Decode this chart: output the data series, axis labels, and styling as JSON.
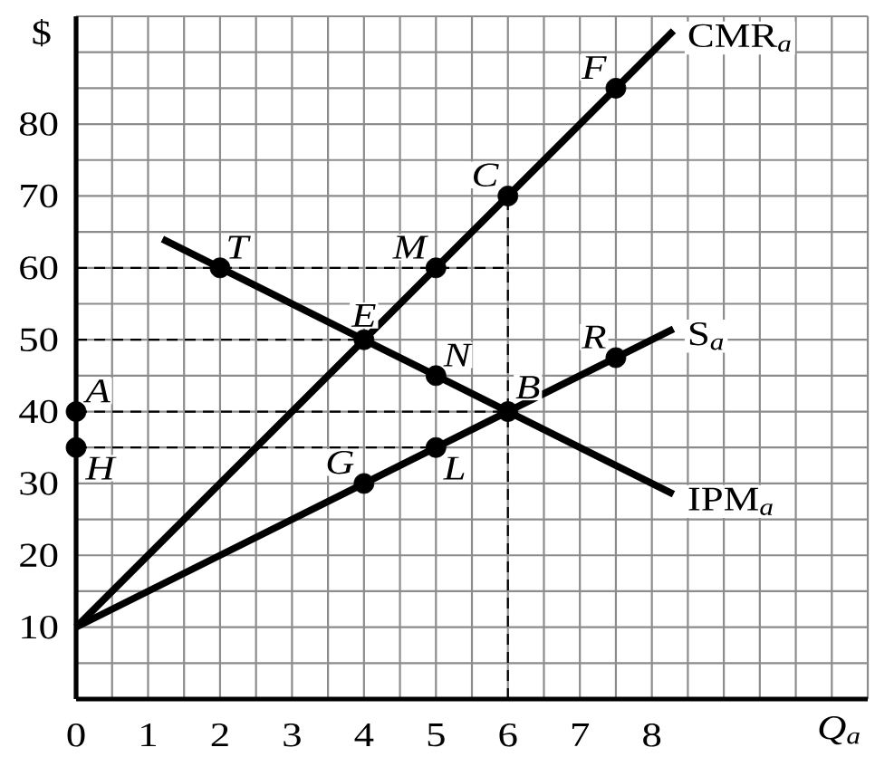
{
  "chart_data": {
    "type": "line",
    "xlabel": "Q$_{a}$",
    "ylabel": "$",
    "xlim": [
      0,
      11
    ],
    "ylim": [
      0,
      95
    ],
    "xticks": [
      0,
      {
        "value": 0.5,
        "label": null
      },
      1,
      {
        "value": 1.5,
        "label": null
      },
      2,
      {
        "value": 2.5,
        "label": null
      },
      3,
      {
        "value": 3.5,
        "label": null
      },
      4,
      {
        "value": 4.5,
        "label": null
      },
      5,
      {
        "value": 5.5,
        "label": null
      },
      6,
      {
        "value": 6.5,
        "label": null
      },
      7,
      {
        "value": 7.5,
        "label": null
      },
      8,
      {
        "value": 8.5,
        "label": null
      },
      {
        "value": 9,
        "label": null
      },
      {
        "value": 9.5,
        "label": null
      },
      {
        "value": 10,
        "label": null
      },
      {
        "value": 10.5,
        "label": null
      },
      {
        "value": 11,
        "label": null
      }
    ],
    "yticks": [
      {
        "value": 0,
        "label": null
      },
      {
        "value": 5,
        "label": null
      },
      10,
      {
        "value": 15,
        "label": null
      },
      20,
      {
        "value": 25,
        "label": null
      },
      30,
      {
        "value": 35,
        "label": null
      },
      40,
      {
        "value": 45,
        "label": null
      },
      50,
      {
        "value": 55,
        "label": null
      },
      60,
      {
        "value": 65,
        "label": null
      },
      70,
      {
        "value": 75,
        "label": null
      },
      80,
      {
        "value": 85,
        "label": null
      },
      {
        "value": 90,
        "label": null
      },
      {
        "value": 95,
        "label": null
      }
    ],
    "grid": true,
    "series": [
      {
        "name": "CMR$_{a}$",
        "color": "#000000",
        "x": [
          0,
          4,
          5,
          6,
          7.5,
          8.3
        ],
        "values": [
          10,
          50,
          60,
          70,
          85,
          93
        ]
      },
      {
        "name": "S$_{a}$",
        "color": "#000000",
        "x": [
          0,
          4,
          5,
          6,
          7.5,
          8.3
        ],
        "values": [
          10,
          30,
          35,
          40,
          47.5,
          51.5
        ]
      },
      {
        "name": "IPM$_{a}$",
        "color": "#000000",
        "x": [
          1.2,
          2,
          4,
          5,
          6,
          8.3
        ],
        "values": [
          64,
          60,
          50,
          45,
          40,
          28.5
        ]
      },
      {
        "type": "line",
        "line_style": "dashed",
        "color": "#000000",
        "x": [
          0,
          6
        ],
        "values": [
          60,
          60
        ]
      },
      {
        "type": "line",
        "line_style": "dashed",
        "color": "#000000",
        "x": [
          0,
          4
        ],
        "values": [
          50,
          50
        ]
      },
      {
        "type": "line",
        "line_style": "dashed",
        "color": "#000000",
        "x": [
          0,
          6
        ],
        "values": [
          40,
          40
        ]
      },
      {
        "type": "line",
        "line_style": "dashed",
        "color": "#000000",
        "x": [
          0,
          5
        ],
        "values": [
          35,
          35
        ]
      },
      {
        "type": "line",
        "line_style": "dashed",
        "color": "#000000",
        "x": [
          6,
          6
        ],
        "values": [
          0,
          70
        ]
      },
      {
        "type": "scatter",
        "marker": "circle",
        "color": "#000000",
        "x": [
          0,
          0,
          2,
          5,
          4,
          6,
          7.5,
          5,
          6,
          4,
          5,
          7.5
        ],
        "values": [
          40,
          35,
          60,
          60,
          50,
          70,
          85,
          45,
          40,
          30,
          35,
          47.5
        ]
      }
    ],
    "annotations": [
      {
        "text": "A",
        "x": 0,
        "y": 40
      },
      {
        "text": "H",
        "x": 0,
        "y": 35
      },
      {
        "text": "T",
        "x": 2,
        "y": 60
      },
      {
        "text": "M",
        "x": 5,
        "y": 60
      },
      {
        "text": "E",
        "x": 4,
        "y": 50
      },
      {
        "text": "C",
        "x": 6,
        "y": 70
      },
      {
        "text": "F",
        "x": 7.5,
        "y": 85
      },
      {
        "text": "N",
        "x": 5,
        "y": 45
      },
      {
        "text": "B",
        "x": 6,
        "y": 40
      },
      {
        "text": "G",
        "x": 4,
        "y": 30
      },
      {
        "text": "L",
        "x": 5,
        "y": 35
      },
      {
        "text": "R",
        "x": 7.5,
        "y": 47.5
      }
    ]
  }
}
